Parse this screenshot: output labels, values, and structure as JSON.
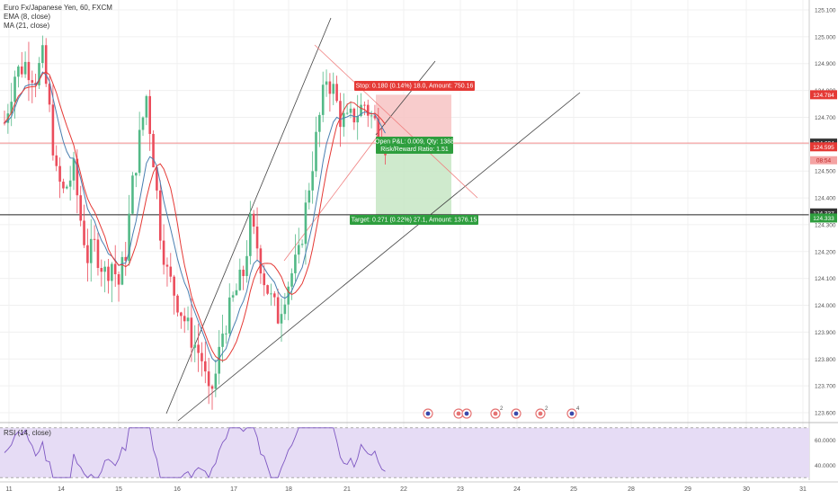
{
  "header": {
    "symbol_line": "Euro Fx/Japanese Yen, 60, FXCM",
    "ema_label": "EMA (8, close)",
    "ma_label": "MA (21, close)",
    "rsi_label": "RSI (14, close)"
  },
  "colors": {
    "up": "#53b987",
    "down": "#eb4d5c",
    "ema": "#4a7fb0",
    "ma": "#e53935",
    "rsi": "#7e57c2",
    "rsi_band": "#e6dcf5",
    "stop_zone": "#f7c3c3",
    "target_zone": "#c7e6c4",
    "stop_badge": "#e53935",
    "target_badge": "#2e9e3e",
    "price_badge": "#333333"
  },
  "annotations": {
    "stop": "Stop: 0.180 (0.14%) 18.0, Amount: 750.16",
    "pnl": "Open P&L: 0.009, Qty: 1388",
    "rr": "Risk/Reward Ratio: 1.51",
    "target": "Target: 0.271 (0.22%) 27.1, Amount: 1376.15"
  },
  "price_badges": {
    "stop_price": "124.784",
    "current_price": "124.604",
    "entry_price": "124.595",
    "countdown": "08:54",
    "hline_price": "124.337",
    "target_price": "124.333"
  },
  "chart_data": {
    "type": "candlestick",
    "x_ticks": [
      "11",
      "14",
      "15",
      "16",
      "17",
      "18",
      "21",
      "22",
      "23",
      "24",
      "25",
      "28",
      "29",
      "30",
      "31"
    ],
    "y_ticks": [
      "125.100",
      "125.000",
      "124.900",
      "124.800",
      "124.700",
      "124.600",
      "124.500",
      "124.400",
      "124.300",
      "124.200",
      "124.100",
      "124.000",
      "123.900",
      "123.800",
      "123.700",
      "123.600"
    ],
    "ylim": [
      123.57,
      125.13
    ],
    "rsi_ticks": [
      "60.0000",
      "40.0000"
    ],
    "rsi_ylim": [
      28,
      72
    ],
    "event_markers": [
      "",
      "",
      "",
      "2",
      "",
      "2",
      "4"
    ],
    "price_path": [
      [
        0,
        124.68
      ],
      [
        3,
        124.86
      ],
      [
        6,
        124.9
      ],
      [
        9,
        124.85
      ],
      [
        11,
        124.92
      ],
      [
        13,
        124.72
      ],
      [
        15,
        124.48
      ],
      [
        17,
        124.42
      ],
      [
        20,
        124.5
      ],
      [
        22,
        124.32
      ],
      [
        24,
        124.18
      ],
      [
        26,
        124.22
      ],
      [
        29,
        124.12
      ],
      [
        31,
        124.16
      ],
      [
        33,
        124.08
      ],
      [
        35,
        124.2
      ],
      [
        37,
        124.45
      ],
      [
        39,
        124.62
      ],
      [
        41,
        124.78
      ],
      [
        43,
        124.55
      ],
      [
        45,
        124.28
      ],
      [
        47,
        124.12
      ],
      [
        49,
        124.05
      ],
      [
        51,
        123.98
      ],
      [
        54,
        123.88
      ],
      [
        57,
        123.8
      ],
      [
        59,
        123.65
      ],
      [
        61,
        123.74
      ],
      [
        63,
        123.9
      ],
      [
        66,
        124.02
      ],
      [
        69,
        124.12
      ],
      [
        71,
        124.3
      ],
      [
        73,
        124.22
      ],
      [
        75,
        124.1
      ],
      [
        77,
        124.02
      ],
      [
        79,
        123.96
      ],
      [
        81,
        124.05
      ],
      [
        83,
        124.12
      ],
      [
        85,
        124.18
      ],
      [
        88,
        124.45
      ],
      [
        91,
        124.7
      ],
      [
        93,
        124.85
      ],
      [
        95,
        124.8
      ],
      [
        97,
        124.7
      ],
      [
        99,
        124.68
      ],
      [
        102,
        124.72
      ],
      [
        104,
        124.75
      ],
      [
        106,
        124.7
      ],
      [
        108,
        124.66
      ],
      [
        110,
        124.6
      ]
    ],
    "ema_label": "EMA (8, close)",
    "ma_label": "MA (21, close)"
  }
}
